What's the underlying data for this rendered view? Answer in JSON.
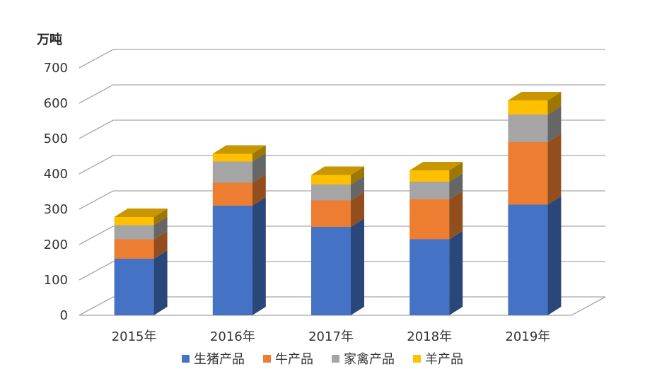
{
  "chart_data": {
    "type": "bar",
    "stacked": true,
    "three_d": true,
    "ylabel": "万吨",
    "ylim": [
      0,
      700
    ],
    "yticks": [
      0,
      100,
      200,
      300,
      400,
      500,
      600,
      700
    ],
    "categories": [
      "2015年",
      "2016年",
      "2017年",
      "2018年",
      "2019年"
    ],
    "series": [
      {
        "name": "生猪产品",
        "color": "#4472C4",
        "values": [
          160,
          310,
          250,
          215,
          313
        ]
      },
      {
        "name": "牛产品",
        "color": "#ED7D31",
        "values": [
          55,
          65,
          75,
          113,
          177
        ]
      },
      {
        "name": "家禽产品",
        "color": "#A5A5A5",
        "values": [
          40,
          60,
          45,
          50,
          78
        ]
      },
      {
        "name": "羊产品",
        "color": "#FFC000",
        "values": [
          23,
          22,
          27,
          32,
          40
        ]
      }
    ],
    "grid": true,
    "legend_position": "bottom"
  }
}
